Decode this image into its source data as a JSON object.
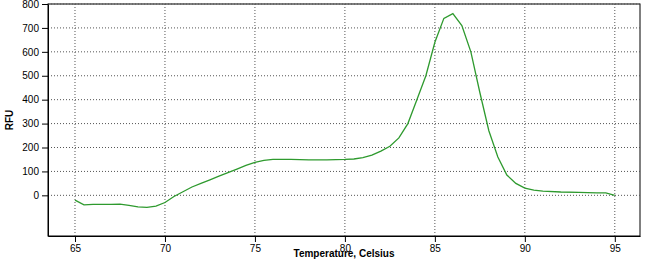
{
  "chart_data": {
    "type": "line",
    "x_label": "Temperature, Celsius",
    "y_label": "RFU",
    "x": [
      65,
      65.5,
      66,
      67,
      67.5,
      68,
      68.5,
      69,
      69.5,
      70,
      70.5,
      71,
      71.5,
      72,
      72.5,
      73,
      73.5,
      74,
      74.5,
      75,
      75.5,
      76,
      77,
      78,
      79,
      80,
      80.5,
      81,
      81.5,
      82,
      82.5,
      83,
      83.5,
      84,
      84.5,
      85,
      85.5,
      86,
      86.5,
      87,
      87.5,
      88,
      88.5,
      89,
      89.5,
      90,
      90.5,
      91,
      92,
      93,
      94,
      94.5,
      95
    ],
    "values": [
      -20,
      -40,
      -38,
      -38,
      -37,
      -42,
      -48,
      -50,
      -45,
      -30,
      -5,
      15,
      35,
      50,
      65,
      80,
      95,
      110,
      125,
      138,
      146,
      150,
      150,
      148,
      148,
      150,
      152,
      158,
      168,
      185,
      205,
      240,
      300,
      400,
      500,
      640,
      740,
      760,
      710,
      600,
      430,
      270,
      160,
      85,
      50,
      30,
      22,
      18,
      14,
      12,
      10,
      10,
      0
    ],
    "color": "#2e9a2e",
    "xlim": [
      63.5,
      96.4
    ],
    "ylim": [
      -170,
      800
    ],
    "xticks": [
      65,
      70,
      75,
      80,
      85,
      90,
      95
    ],
    "yticks": [
      0,
      100,
      200,
      300,
      400,
      500,
      600,
      700,
      800
    ],
    "grid": true
  }
}
